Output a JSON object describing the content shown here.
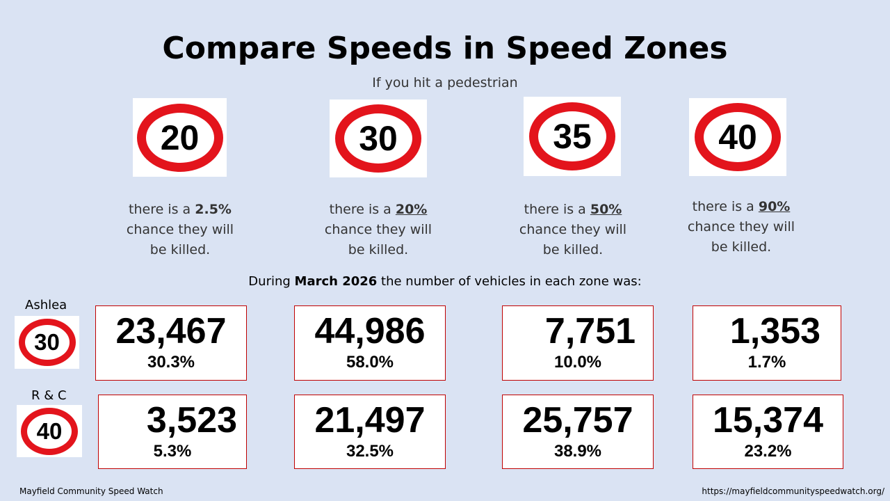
{
  "title": "Compare Speeds in Speed Zones",
  "subtitle": "If you hit a pedestrian",
  "speed_signs": [
    {
      "label": "20",
      "risk_prefix": "there is a ",
      "risk_value": "2.5%",
      "risk_suffix_line2": "chance they will",
      "risk_line3": "be killed."
    },
    {
      "label": "30",
      "risk_prefix": "there is a ",
      "risk_value": "20%",
      "risk_suffix_line2": "chance they will",
      "risk_line3": "be killed."
    },
    {
      "label": "35",
      "risk_prefix": "there is a ",
      "risk_value": "50%",
      "risk_suffix_line2": "chance they will",
      "risk_line3": "be killed."
    },
    {
      "label": "40",
      "risk_prefix": "there is a ",
      "risk_value": "90%",
      "risk_suffix_line2": "chance they will",
      "risk_line3": "be killed."
    }
  ],
  "during": {
    "prefix": "During ",
    "month": "March 2026",
    "suffix": " the number of vehicles in each zone was:"
  },
  "zones": [
    {
      "name": "Ashlea",
      "sign": "30",
      "counts": [
        {
          "value": "23,467",
          "percent": "30.3%"
        },
        {
          "value": "44,986",
          "percent": "58.0%"
        },
        {
          "value": "7,751",
          "percent": "10.0%"
        },
        {
          "value": "1,353",
          "percent": "1.7%"
        }
      ]
    },
    {
      "name": "R & C",
      "sign": "40",
      "counts": [
        {
          "value": "3,523",
          "percent": "5.3%"
        },
        {
          "value": "21,497",
          "percent": "32.5%"
        },
        {
          "value": "25,757",
          "percent": "38.9%"
        },
        {
          "value": "15,374",
          "percent": "23.2%"
        }
      ]
    }
  ],
  "footer": {
    "left": "Mayfield Community Speed Watch",
    "right": "https://mayfieldcommunityspeedwatch.org/"
  },
  "colors": {
    "background": "#dae3f3",
    "sign_red": "#e3141c",
    "card_border": "#c00000"
  }
}
